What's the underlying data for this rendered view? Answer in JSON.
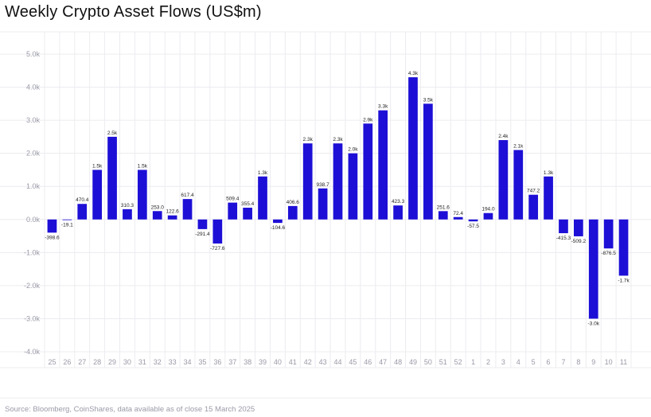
{
  "chart_data": {
    "type": "bar",
    "title": "Weekly Crypto Asset Flows (US$m)",
    "xlabel": "",
    "ylabel": "",
    "ylim": [
      -4000,
      5000
    ],
    "grid": true,
    "bar_color": "#1d0fd6",
    "categories": [
      "25",
      "26",
      "27",
      "28",
      "29",
      "30",
      "31",
      "32",
      "33",
      "34",
      "35",
      "36",
      "37",
      "38",
      "39",
      "40",
      "41",
      "42",
      "43",
      "44",
      "45",
      "46",
      "47",
      "48",
      "49",
      "50",
      "51",
      "52",
      "1",
      "2",
      "3",
      "4",
      "5",
      "6",
      "7",
      "8",
      "9",
      "10",
      "11"
    ],
    "values": [
      -398.6,
      -19.1,
      470.4,
      1500,
      2500,
      310.3,
      1500,
      253.0,
      122.6,
      617.4,
      -291.4,
      -727.6,
      509.4,
      355.4,
      1300,
      -104.6,
      406.6,
      2300,
      938.7,
      2300,
      2000,
      2900,
      3300,
      423.3,
      4300,
      3500,
      251.6,
      72.4,
      -57.5,
      194.0,
      2400,
      2100,
      747.2,
      1300,
      -415.3,
      -509.2,
      -3000,
      -876.5,
      -1700
    ],
    "data_labels": [
      "-398.6",
      "-19.1",
      "470.4",
      "1.5k",
      "2.5k",
      "310.3",
      "1.5k",
      "253.0",
      "122.6",
      "617.4",
      "-291.4",
      "-727.6",
      "509.4",
      "355.4",
      "1.3k",
      "-104.6",
      "406.6",
      "2.3k",
      "938.7",
      "2.3k",
      "2.0k",
      "2.9k",
      "3.3k",
      "423.3",
      "4.3k",
      "3.5k",
      "251.6",
      "72.4",
      "-57.5",
      "194.0",
      "2.4k",
      "2.1k",
      "747.2",
      "1.3k",
      "-415.3",
      "-509.2",
      "-3.0k",
      "-876.5",
      "-1.7k"
    ],
    "yticks": [
      5000,
      4000,
      3000,
      2000,
      1000,
      0,
      -1000,
      -2000,
      -3000,
      -4000
    ],
    "ytick_labels": [
      "5.0k",
      "4.0k",
      "3.0k",
      "2.0k",
      "1.0k",
      "0.0k",
      "-1.0k",
      "-2.0k",
      "-3.0k",
      "-4.0k"
    ]
  },
  "footer": {
    "source": "Source: Bloomberg, CoinShares, data available as of close 15 March 2025"
  },
  "colors": {
    "grid": "#ececf1",
    "tick_text": "#9a9aa8",
    "label_text": "#222222"
  }
}
